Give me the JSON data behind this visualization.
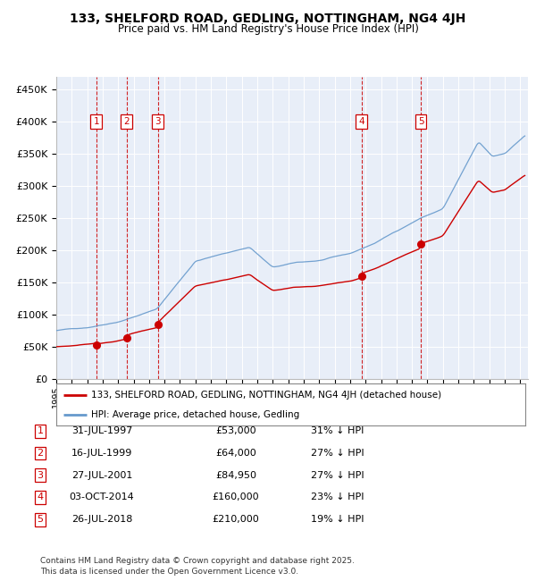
{
  "title_line1": "133, SHELFORD ROAD, GEDLING, NOTTINGHAM, NG4 4JH",
  "title_line2": "Price paid vs. HM Land Registry's House Price Index (HPI)",
  "background_color": "#e8eef8",
  "plot_bg_color": "#e8eef8",
  "hpi_color": "#6699cc",
  "price_color": "#cc0000",
  "vline_color": "#cc0000",
  "ylim": [
    0,
    470000
  ],
  "xlim_start": 1995.0,
  "xlim_end": 2025.5,
  "transactions": [
    {
      "num": 1,
      "date": "31-JUL-1997",
      "year": 1997.58,
      "price": 53000,
      "pct": "31%"
    },
    {
      "num": 2,
      "date": "16-JUL-1999",
      "year": 1999.54,
      "price": 64000,
      "pct": "27%"
    },
    {
      "num": 3,
      "date": "27-JUL-2001",
      "year": 2001.57,
      "price": 84950,
      "pct": "27%"
    },
    {
      "num": 4,
      "date": "03-OCT-2014",
      "year": 2014.75,
      "price": 160000,
      "pct": "23%"
    },
    {
      "num": 5,
      "date": "26-JUL-2018",
      "year": 2018.57,
      "price": 210000,
      "pct": "19%"
    }
  ],
  "legend_label_price": "133, SHELFORD ROAD, GEDLING, NOTTINGHAM, NG4 4JH (detached house)",
  "legend_label_hpi": "HPI: Average price, detached house, Gedling",
  "footnote1": "Contains HM Land Registry data © Crown copyright and database right 2025.",
  "footnote2": "This data is licensed under the Open Government Licence v3.0.",
  "yticks": [
    0,
    50000,
    100000,
    150000,
    200000,
    250000,
    300000,
    350000,
    400000,
    450000
  ],
  "ytick_labels": [
    "£0",
    "£50K",
    "£100K",
    "£150K",
    "£200K",
    "£250K",
    "£300K",
    "£350K",
    "£400K",
    "£450K"
  ]
}
